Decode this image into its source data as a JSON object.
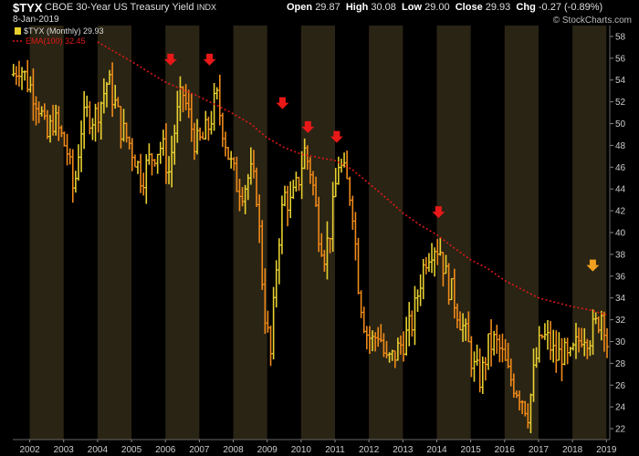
{
  "header": {
    "symbol": "$TYX",
    "name": "CBOE 30-Year US Treasury Yield",
    "exchange": "INDX",
    "date": "8-Jan-2019",
    "open_label": "Open",
    "open": "29.87",
    "high_label": "High",
    "high": "30.08",
    "low_label": "Low",
    "low": "29.00",
    "close_label": "Close",
    "close": "29.93",
    "chg_label": "Chg",
    "chg": "-0.27 (-0.89%)",
    "watermark": "© StockCharts.com"
  },
  "legend": {
    "price": "$TYX (Monthly) 29.93",
    "ema": "EMA(100) 32.45"
  },
  "colors": {
    "background": "#000000",
    "band_even": "#000000",
    "band_odd": "#2a2414",
    "bar_up": "#e8d030",
    "bar_down": "#f08a1a",
    "ema": "#e01818",
    "arrow_red": "#e81818",
    "arrow_orange": "#f0a020",
    "axis_text": "#cccccc"
  },
  "chart_data": {
    "type": "line",
    "title": "$TYX CBOE 30-Year US Treasury Yield INDX",
    "x_ticks": [
      "2002",
      "2003",
      "2004",
      "2005",
      "2006",
      "2007",
      "2008",
      "2009",
      "2010",
      "2011",
      "2012",
      "2013",
      "2014",
      "2015",
      "2016",
      "2017",
      "2018",
      "2019"
    ],
    "y_ticks": [
      22,
      24,
      26,
      28,
      30,
      32,
      34,
      36,
      38,
      40,
      42,
      44,
      46,
      48,
      50,
      52,
      54,
      56,
      58
    ],
    "ylim": [
      21,
      59
    ],
    "xlim": [
      2001.5,
      2019.1
    ],
    "grid": "alternating yearly shaded bands",
    "axis_side": "right",
    "series": [
      {
        "name": "$TYX (Monthly)",
        "style": "monthly OHLC bars",
        "x": [
          2001.5,
          2001.7,
          2001.9,
          2002.1,
          2002.3,
          2002.5,
          2002.7,
          2002.9,
          2003.1,
          2003.3,
          2003.5,
          2003.7,
          2003.9,
          2004.1,
          2004.3,
          2004.5,
          2004.7,
          2004.9,
          2005.1,
          2005.3,
          2005.5,
          2005.7,
          2005.9,
          2006.1,
          2006.3,
          2006.5,
          2006.7,
          2006.9,
          2007.1,
          2007.3,
          2007.5,
          2007.7,
          2007.9,
          2008.1,
          2008.3,
          2008.5,
          2008.7,
          2008.9,
          2009.1,
          2009.3,
          2009.5,
          2009.7,
          2009.9,
          2010.1,
          2010.3,
          2010.5,
          2010.7,
          2010.9,
          2011.1,
          2011.3,
          2011.5,
          2011.7,
          2011.9,
          2012.1,
          2012.3,
          2012.5,
          2012.7,
          2012.9,
          2013.1,
          2013.3,
          2013.5,
          2013.7,
          2013.9,
          2014.1,
          2014.3,
          2014.5,
          2014.7,
          2014.9,
          2015.1,
          2015.3,
          2015.5,
          2015.7,
          2015.9,
          2016.1,
          2016.3,
          2016.5,
          2016.7,
          2016.9,
          2017.1,
          2017.3,
          2017.5,
          2017.7,
          2017.9,
          2018.1,
          2018.3,
          2018.5,
          2018.7,
          2018.9,
          2019.0
        ],
        "values": [
          54.5,
          55.5,
          54.0,
          53.0,
          51.5,
          48.5,
          50.5,
          49.0,
          47.5,
          43.5,
          49.5,
          51.0,
          50.5,
          52.0,
          54.0,
          52.0,
          49.5,
          48.5,
          47.0,
          45.0,
          46.5,
          47.5,
          48.0,
          45.5,
          50.0,
          53.0,
          50.5,
          48.0,
          48.5,
          50.0,
          52.5,
          49.5,
          46.5,
          44.5,
          44.0,
          45.5,
          43.5,
          33.5,
          28.5,
          38.5,
          43.5,
          42.5,
          44.5,
          47.5,
          45.5,
          40.5,
          38.0,
          41.0,
          46.5,
          45.0,
          43.0,
          35.0,
          31.0,
          30.0,
          31.0,
          28.0,
          28.5,
          29.5,
          30.5,
          32.0,
          35.5,
          38.0,
          39.0,
          38.5,
          35.5,
          34.0,
          32.0,
          30.0,
          27.5,
          26.5,
          29.5,
          30.0,
          29.0,
          27.0,
          26.0,
          25.0,
          23.5,
          28.0,
          30.5,
          30.0,
          28.5,
          29.0,
          28.0,
          29.5,
          31.0,
          30.5,
          31.5,
          33.0,
          29.9
        ]
      },
      {
        "name": "EMA(100)",
        "style": "dotted line",
        "x": [
          2004.0,
          2005.0,
          2006.0,
          2006.9,
          2007.5,
          2008.0,
          2008.5,
          2009.0,
          2009.5,
          2010.0,
          2010.5,
          2011.0,
          2011.5,
          2012.0,
          2012.5,
          2013.0,
          2013.5,
          2014.0,
          2014.5,
          2015.0,
          2015.5,
          2016.0,
          2016.5,
          2017.0,
          2017.5,
          2018.0,
          2018.5,
          2019.0
        ],
        "values": [
          57.5,
          55.7,
          53.8,
          52.6,
          51.7,
          50.9,
          50.0,
          48.7,
          47.8,
          47.2,
          46.9,
          46.6,
          45.8,
          44.5,
          43.2,
          41.8,
          40.7,
          39.8,
          38.6,
          37.5,
          36.7,
          35.6,
          34.8,
          34.0,
          33.6,
          33.2,
          32.9,
          32.45
        ]
      }
    ],
    "annotations": [
      {
        "type": "arrow-down",
        "color": "red",
        "x": 2006.15,
        "y": 55.5
      },
      {
        "type": "arrow-down",
        "color": "red",
        "x": 2007.3,
        "y": 55.5
      },
      {
        "type": "arrow-down",
        "color": "red",
        "x": 2009.45,
        "y": 51.5
      },
      {
        "type": "arrow-down",
        "color": "red",
        "x": 2010.2,
        "y": 49.3
      },
      {
        "type": "arrow-down",
        "color": "red",
        "x": 2011.05,
        "y": 48.4
      },
      {
        "type": "arrow-down",
        "color": "red",
        "x": 2014.05,
        "y": 41.5
      },
      {
        "type": "arrow-down",
        "color": "orange",
        "x": 2018.6,
        "y": 36.6
      }
    ]
  }
}
